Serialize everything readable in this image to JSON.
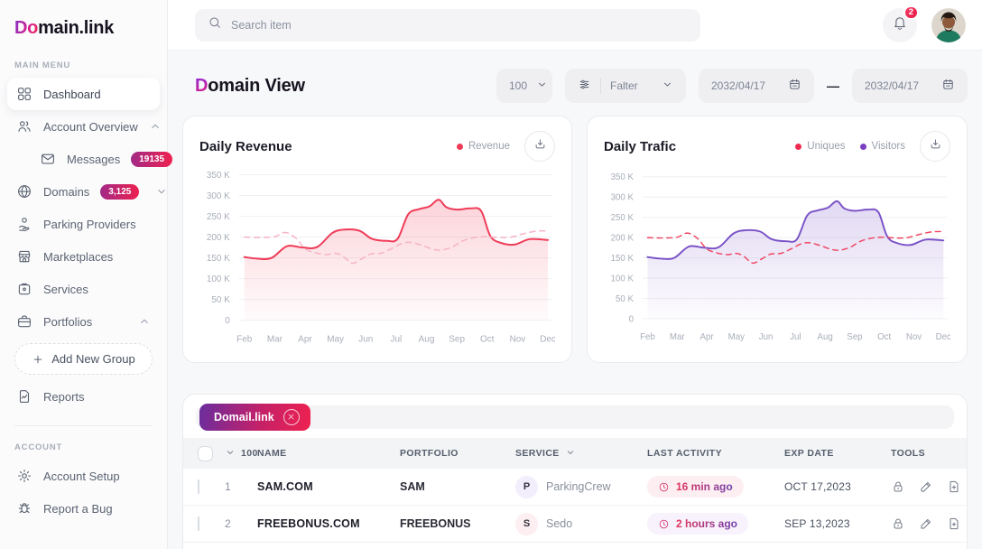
{
  "brand": {
    "logo_prefix": "Do",
    "logo_rest": "main.link"
  },
  "topbar": {
    "search_placeholder": "Search item",
    "notification_count": "2"
  },
  "sidebar": {
    "main_label": "MAIN MENU",
    "account_label": "ACCOUNT",
    "main_items": [
      {
        "label": "Dashboard",
        "icon": "dashboard",
        "active": true
      },
      {
        "label": "Account Overview",
        "icon": "users",
        "chevron": "up"
      },
      {
        "label": "Messages",
        "icon": "mail",
        "badge": "19135",
        "sub": true
      },
      {
        "label": "Domains",
        "icon": "globe",
        "badge": "3,125",
        "chevron": "down"
      },
      {
        "label": "Parking Providers",
        "icon": "parking"
      },
      {
        "label": "Marketplaces",
        "icon": "store"
      },
      {
        "label": "Services",
        "icon": "services"
      },
      {
        "label": "Portfolios",
        "icon": "briefcase",
        "chevron": "up"
      },
      {
        "label": "Add New Group",
        "icon": "plus",
        "type": "add-button"
      },
      {
        "label": "Reports",
        "icon": "report"
      }
    ],
    "account_items": [
      {
        "label": "Account Setup",
        "icon": "gear"
      },
      {
        "label": "Report a Bug",
        "icon": "bug"
      }
    ]
  },
  "page": {
    "title_first": "D",
    "title_rest": "omain View",
    "page_size": "100",
    "filter_label": "Falter",
    "date_from": "2032/04/17",
    "date_separator": "—",
    "date_to": "2032/04/17"
  },
  "chart_data": [
    {
      "type": "line",
      "title": "Daily Revenue",
      "x_categories": [
        "Feb",
        "Mar",
        "Apr",
        "May",
        "Jun",
        "Jul",
        "Aug",
        "Sep",
        "Oct",
        "Nov",
        "Dec"
      ],
      "ylim_k": [
        0,
        350
      ],
      "y_ticks": [
        "350 K",
        "300 K",
        "250 K",
        "200 K",
        "150 K",
        "100 K",
        "50 K",
        "0"
      ],
      "grid": "horizontal",
      "legend_position": "top-right",
      "legend": [
        {
          "label": "Revenue",
          "color": "#ef3b57"
        }
      ],
      "series": [
        {
          "name": "Revenue",
          "style": "solid",
          "color": "#ef3b57",
          "fill": true,
          "points_month_k": [
            [
              0,
              152
            ],
            [
              0.45,
              148
            ],
            [
              0.9,
              150
            ],
            [
              1.4,
              178
            ],
            [
              1.9,
              175
            ],
            [
              2.4,
              176
            ],
            [
              2.9,
              210
            ],
            [
              3.3,
              218
            ],
            [
              3.8,
              215
            ],
            [
              4.2,
              196
            ],
            [
              4.7,
              191
            ],
            [
              5.05,
              196
            ],
            [
              5.4,
              255
            ],
            [
              5.75,
              267
            ],
            [
              6.1,
              274
            ],
            [
              6.4,
              290
            ],
            [
              6.65,
              272
            ],
            [
              7,
              266
            ],
            [
              7.45,
              269
            ],
            [
              7.8,
              263
            ],
            [
              8.1,
              203
            ],
            [
              8.45,
              186
            ],
            [
              8.9,
              182
            ],
            [
              9.4,
              195
            ],
            [
              10,
              193
            ]
          ]
        },
        {
          "name": "Revenue (unlabeled dashed comparison)",
          "style": "dashed",
          "color": "#f6b3c4",
          "fill": false,
          "points_month_k": [
            [
              0,
              200
            ],
            [
              0.5,
              199
            ],
            [
              1,
              201
            ],
            [
              1.35,
              211
            ],
            [
              1.7,
              197
            ],
            [
              2,
              172
            ],
            [
              2.35,
              162
            ],
            [
              2.7,
              158
            ],
            [
              3,
              161
            ],
            [
              3.25,
              154
            ],
            [
              3.55,
              137
            ],
            [
              3.85,
              147
            ],
            [
              4.15,
              159
            ],
            [
              4.5,
              161
            ],
            [
              4.85,
              172
            ],
            [
              5.2,
              185
            ],
            [
              5.5,
              187
            ],
            [
              5.85,
              180
            ],
            [
              6.2,
              171
            ],
            [
              6.5,
              169
            ],
            [
              6.85,
              176
            ],
            [
              7.2,
              191
            ],
            [
              7.6,
              199
            ],
            [
              8,
              201
            ],
            [
              8.4,
              199
            ],
            [
              8.8,
              200
            ],
            [
              9.2,
              208
            ],
            [
              9.6,
              214
            ],
            [
              10,
              215
            ]
          ]
        }
      ]
    },
    {
      "type": "line",
      "title": "Daily Trafic",
      "x_categories": [
        "Feb",
        "Mar",
        "Apr",
        "May",
        "Jun",
        "Jul",
        "Aug",
        "Sep",
        "Oct",
        "Nov",
        "Dec"
      ],
      "ylim_k": [
        0,
        350
      ],
      "y_ticks": [
        "350 K",
        "300 K",
        "250 K",
        "200 K",
        "150 K",
        "100 K",
        "50 K",
        "0"
      ],
      "grid": "horizontal",
      "legend_position": "top-right",
      "legend": [
        {
          "label": "Uniques",
          "color": "#ee2c50"
        },
        {
          "label": "Visitors",
          "color": "#7a3fc1"
        }
      ],
      "series": [
        {
          "name": "Visitors",
          "style": "solid",
          "color": "#7a52c7",
          "fill": true,
          "points_month_k": [
            [
              0,
              152
            ],
            [
              0.45,
              148
            ],
            [
              0.9,
              150
            ],
            [
              1.4,
              178
            ],
            [
              1.9,
              175
            ],
            [
              2.4,
              176
            ],
            [
              2.9,
              210
            ],
            [
              3.3,
              218
            ],
            [
              3.8,
              215
            ],
            [
              4.2,
              196
            ],
            [
              4.7,
              191
            ],
            [
              5.05,
              196
            ],
            [
              5.4,
              255
            ],
            [
              5.75,
              267
            ],
            [
              6.1,
              274
            ],
            [
              6.4,
              290
            ],
            [
              6.65,
              272
            ],
            [
              7,
              266
            ],
            [
              7.45,
              269
            ],
            [
              7.8,
              263
            ],
            [
              8.1,
              203
            ],
            [
              8.45,
              186
            ],
            [
              8.9,
              182
            ],
            [
              9.4,
              195
            ],
            [
              10,
              193
            ]
          ]
        },
        {
          "name": "Uniques",
          "style": "dashed",
          "color": "#ef4763",
          "fill": false,
          "points_month_k": [
            [
              0,
              200
            ],
            [
              0.5,
              199
            ],
            [
              1,
              201
            ],
            [
              1.35,
              211
            ],
            [
              1.7,
              197
            ],
            [
              2,
              172
            ],
            [
              2.35,
              162
            ],
            [
              2.7,
              158
            ],
            [
              3,
              161
            ],
            [
              3.25,
              154
            ],
            [
              3.55,
              137
            ],
            [
              3.85,
              147
            ],
            [
              4.15,
              159
            ],
            [
              4.5,
              161
            ],
            [
              4.85,
              172
            ],
            [
              5.2,
              185
            ],
            [
              5.5,
              187
            ],
            [
              5.85,
              180
            ],
            [
              6.2,
              171
            ],
            [
              6.5,
              169
            ],
            [
              6.85,
              176
            ],
            [
              7.2,
              191
            ],
            [
              7.6,
              199
            ],
            [
              8,
              201
            ],
            [
              8.4,
              199
            ],
            [
              8.8,
              200
            ],
            [
              9.2,
              208
            ],
            [
              9.6,
              214
            ],
            [
              10,
              215
            ]
          ]
        }
      ]
    }
  ],
  "table": {
    "filter_chip": "Domail.link",
    "header": {
      "count": "100",
      "name": "NAME",
      "portfolio": "PORTFOLIO",
      "service": "SERVICE",
      "activity": "LAST ACTIVITY",
      "exp": "EXP DATE",
      "tools": "TOOLS"
    },
    "tool_icons": [
      "lock",
      "edit",
      "file-add",
      "file-export"
    ],
    "rows": [
      {
        "num": "1",
        "name": "SAM.COM",
        "portfolio": "SAM",
        "service_initial": "P",
        "service_name": "ParkingCrew",
        "service_tint": "lavender",
        "activity": "16 min ago",
        "activity_tint": "pink",
        "exp_date": "OCT 17,2023"
      },
      {
        "num": "2",
        "name": "FREEBONUS.COM",
        "portfolio": "FREEBONUS",
        "service_initial": "S",
        "service_name": "Sedo",
        "service_tint": "pink",
        "activity": "2 hours ago",
        "activity_tint": "lavender",
        "exp_date": "SEP 13,2023"
      }
    ]
  },
  "colors": {
    "brand_gradient_start": "#7f30c4",
    "brand_gradient_mid": "#d9218f",
    "brand_gradient_end": "#f4264e",
    "accent_red": "#ee2c50",
    "accent_purple": "#7a3fc1"
  }
}
